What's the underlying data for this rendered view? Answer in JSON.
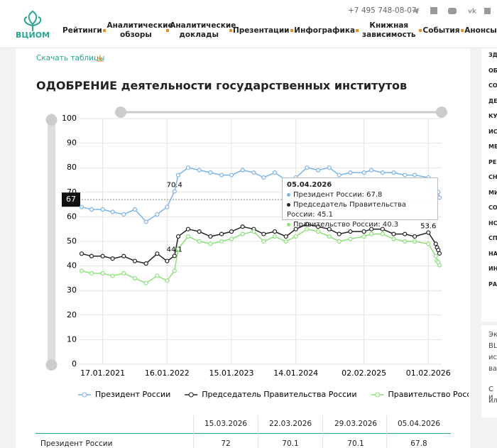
{
  "header": {
    "logo": "ВЦИОМ",
    "phone": "+7 495 748-08-07",
    "nav": [
      "Рейтинги",
      "Аналитические обзоры",
      "Аналитические доклады",
      "Презентации",
      "Инфографика",
      "Книжная зависимость",
      "События",
      "Анонсы"
    ]
  },
  "download_link": "Скачать таблицы",
  "chart_data": {
    "type": "line",
    "title": "ОДОБРЕНИЕ деятельности государственных институтов",
    "x": [
      "20.09.2020",
      "15.11.2020",
      "17.01.2021",
      "14.03.2021",
      "16.05.2021",
      "18.07.2021",
      "19.09.2021",
      "21.11.2021",
      "16.01.2022",
      "27.02.2022",
      "20.03.2022",
      "15.05.2022",
      "17.07.2022",
      "18.09.2022",
      "20.11.2022",
      "15.01.2023",
      "19.03.2023",
      "21.05.2023",
      "16.07.2023",
      "17.09.2023",
      "19.11.2023",
      "14.01.2024",
      "17.03.2024",
      "19.05.2024",
      "21.07.2024",
      "15.09.2024",
      "17.11.2024",
      "02.02.2025",
      "16.03.2025",
      "18.05.2025",
      "20.07.2025",
      "21.09.2025",
      "16.11.2025",
      "01.02.2026",
      "15.03.2026",
      "22.03.2026",
      "29.03.2026",
      "05.04.2026"
    ],
    "xlim": [
      "20.09.2020",
      "05.04.2026"
    ],
    "xticks": [
      "17.01.2021",
      "16.01.2022",
      "15.01.2023",
      "14.01.2024",
      "02.02.2025",
      "01.02.2026"
    ],
    "ylim": [
      0,
      100
    ],
    "yticks": [
      0,
      10,
      20,
      30,
      40,
      50,
      60,
      70,
      80,
      90,
      100
    ],
    "grid": true,
    "series": [
      {
        "name": "Президент России",
        "color": "#7cb2e8",
        "values": [
          64,
          63,
          63,
          62,
          61,
          63,
          58,
          61,
          64,
          70.4,
          77,
          80,
          79,
          78,
          77,
          77,
          79,
          78,
          76,
          78,
          75,
          76,
          80,
          79,
          80,
          77,
          78,
          78,
          79,
          78,
          78,
          77,
          77,
          76,
          72,
          70.1,
          70.1,
          67.8
        ]
      },
      {
        "name": "Председатель Правительства России",
        "color": "#222222",
        "values": [
          45,
          44,
          44,
          43,
          44,
          42,
          41,
          45,
          42,
          44.1,
          52,
          55,
          54,
          52,
          53,
          54,
          56,
          55,
          53,
          54,
          52,
          55,
          57,
          56,
          55,
          53,
          54,
          54,
          55,
          55,
          53,
          53,
          52,
          53.6,
          49,
          47.5,
          46.5,
          45.1
        ]
      },
      {
        "name": "Правительство России",
        "color": "#8ee07a",
        "values": [
          38,
          37,
          37,
          36,
          37,
          35,
          33,
          36,
          34,
          38,
          47,
          52,
          50,
          49,
          50,
          51,
          53,
          54,
          50,
          52,
          50,
          52,
          55,
          54,
          52,
          50,
          51,
          52,
          53,
          53,
          51,
          50,
          50,
          49,
          44,
          42,
          41.5,
          40.3
        ]
      }
    ],
    "cursor_value": 67
  },
  "table": {
    "columns": [
      "15.03.2026",
      "22.03.2026",
      "29.03.2026",
      "05.04.2026"
    ],
    "rows": [
      [
        "Президент России",
        72,
        70.1,
        70.1,
        67.8
      ]
    ]
  },
  "sidebar": [
    "ЗД",
    "ОБ",
    "СО",
    "ДЕ",
    "КУ",
    "ИС",
    "МЕ",
    "РЕ",
    "СН",
    "МИ",
    "СО",
    "НС",
    "СП",
    "НА",
    "ИН",
    "РА"
  ],
  "sidebar_text": [
    "Эк",
    "BL",
    "ис",
    "ва",
    "С и",
    "ил"
  ]
}
